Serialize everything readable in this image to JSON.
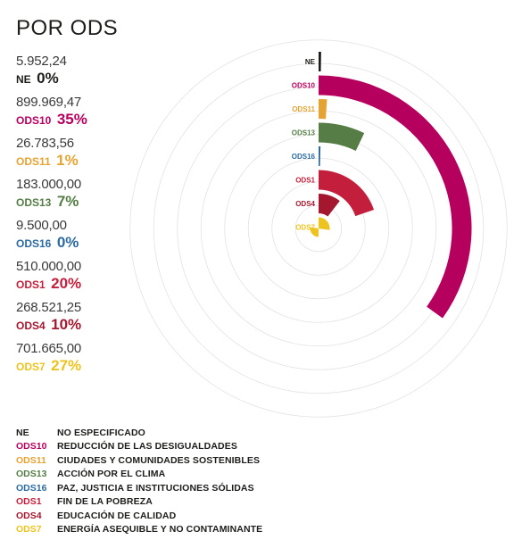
{
  "title": "POR ODS",
  "chart_data": {
    "type": "radial-bar",
    "categories": [
      "NE",
      "ODS10",
      "ODS11",
      "ODS13",
      "ODS16",
      "ODS1",
      "ODS4",
      "ODS7"
    ],
    "amounts": [
      "5.952,24",
      "899.969,47",
      "26.783,56",
      "183.000,00",
      "9.500,00",
      "510.000,00",
      "268.521,25",
      "701.665,00"
    ],
    "percent_labels": [
      "0%",
      "35%",
      "1%",
      "7%",
      "0%",
      "20%",
      "10%",
      "27%"
    ],
    "values": [
      0.23,
      34.96,
      1.04,
      7.11,
      0.37,
      19.81,
      10.43,
      27.26
    ],
    "colors": [
      "#1d1d1b",
      "#b5005e",
      "#e5a332",
      "#567d46",
      "#2c6a9f",
      "#c31f3c",
      "#a4172f",
      "#edc31d"
    ]
  },
  "legend": [
    {
      "code": "NE",
      "name": "NO ESPECIFICADO"
    },
    {
      "code": "ODS10",
      "name": "REDUCCIÓN DE LAS DESIGUALDADES"
    },
    {
      "code": "ODS11",
      "name": "CIUDADES Y COMUNIDADES SOSTENIBLES"
    },
    {
      "code": "ODS13",
      "name": "ACCIÓN POR EL CLIMA"
    },
    {
      "code": "ODS16",
      "name": "PAZ, JUSTICIA E INSTITUCIONES SÓLIDAS"
    },
    {
      "code": "ODS1",
      "name": "FIN DE LA POBREZA"
    },
    {
      "code": "ODS4",
      "name": "EDUCACIÓN DE CALIDAD"
    },
    {
      "code": "ODS7",
      "name": "ENERGÍA ASEQUIBLE Y NO CONTAMINANTE"
    }
  ]
}
